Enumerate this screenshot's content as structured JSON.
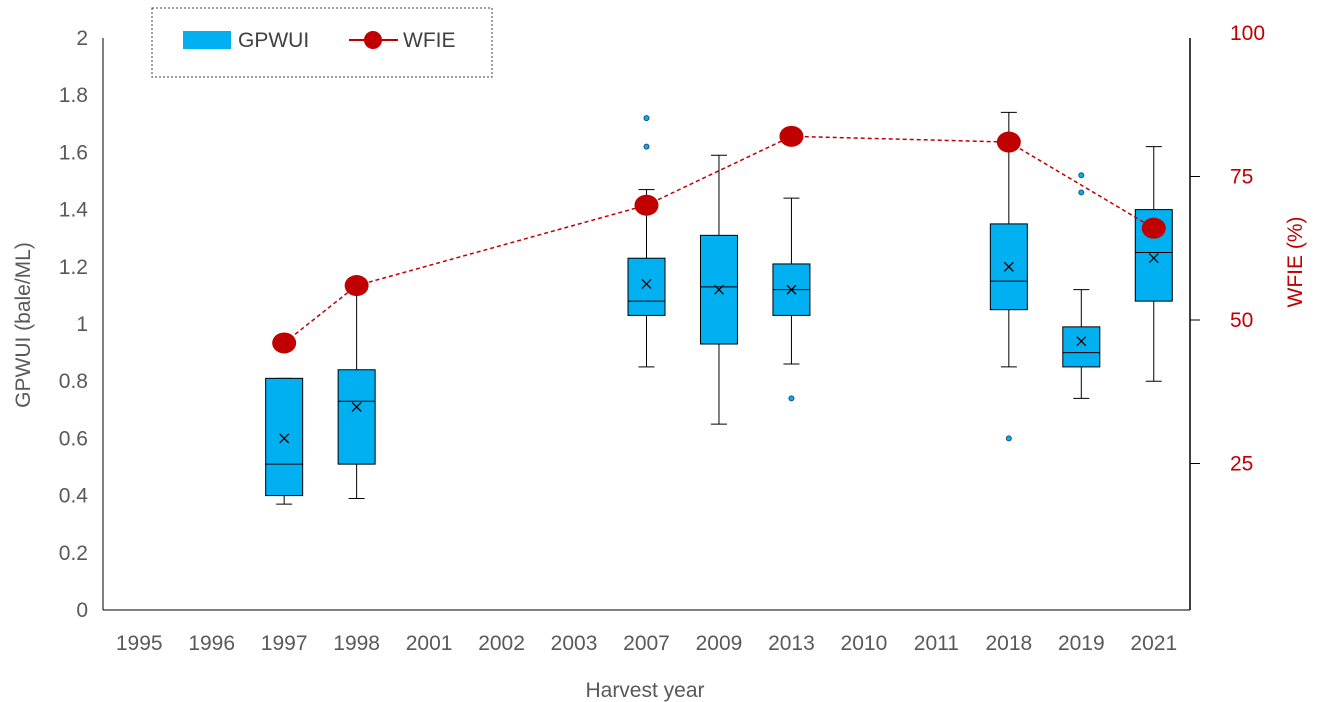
{
  "chart_data": {
    "type": "box+line",
    "xlabel": "Harvest year",
    "ylabel": "GPWUI (bale/ML)",
    "ylabel_right": "WFIE (%)",
    "categories": [
      "1995",
      "1996",
      "1997",
      "1998",
      "2001",
      "2002",
      "2003",
      "2007",
      "2009",
      "2013",
      "2010",
      "2011",
      "2018",
      "2019",
      "2021"
    ],
    "ylim": [
      0,
      2
    ],
    "yticks": [
      "0",
      "0.2",
      "0.4",
      "0.6",
      "0.8",
      "1",
      "1.2",
      "1.4",
      "1.6",
      "1.8",
      "2"
    ],
    "ylim_right": [
      0,
      100
    ],
    "yticks_right": [
      "25",
      "50",
      "75",
      "100"
    ],
    "legend": {
      "position": "top-left",
      "entries": [
        "GPWUI",
        "WFIE"
      ]
    },
    "colors": {
      "box": "#00B0F0",
      "line": "#C00000",
      "box_border": "#000000"
    },
    "series": [
      {
        "name": "GPWUI",
        "kind": "box",
        "boxes": [
          {
            "category": "1997",
            "min": 0.37,
            "q1": 0.4,
            "median": 0.51,
            "q3": 0.81,
            "max": 0.81,
            "mean": 0.6,
            "outliers": []
          },
          {
            "category": "1998",
            "min": 0.39,
            "q1": 0.51,
            "median": 0.73,
            "q3": 0.84,
            "max": 1.11,
            "mean": 0.71,
            "outliers": []
          },
          {
            "category": "2007",
            "min": 0.85,
            "q1": 1.03,
            "median": 1.08,
            "q3": 1.23,
            "max": 1.47,
            "mean": 1.14,
            "outliers": [
              1.62,
              1.72
            ]
          },
          {
            "category": "2009",
            "min": 0.65,
            "q1": 0.93,
            "median": 1.13,
            "q3": 1.31,
            "max": 1.59,
            "mean": 1.12,
            "outliers": []
          },
          {
            "category": "2013",
            "min": 0.86,
            "q1": 1.03,
            "median": 1.12,
            "q3": 1.21,
            "max": 1.44,
            "mean": 1.12,
            "outliers": [
              0.74
            ]
          },
          {
            "category": "2018",
            "min": 0.85,
            "q1": 1.05,
            "median": 1.15,
            "q3": 1.35,
            "max": 1.74,
            "mean": 1.2,
            "outliers": [
              0.6
            ]
          },
          {
            "category": "2019",
            "min": 0.74,
            "q1": 0.85,
            "median": 0.9,
            "q3": 0.99,
            "max": 1.12,
            "mean": 0.94,
            "outliers": [
              1.46,
              1.52
            ]
          },
          {
            "category": "2021",
            "min": 0.8,
            "q1": 1.08,
            "median": 1.25,
            "q3": 1.4,
            "max": 1.62,
            "mean": 1.23,
            "outliers": []
          }
        ]
      },
      {
        "name": "WFIE",
        "kind": "line",
        "axis": "right",
        "points": [
          {
            "category": "1997",
            "value": 46
          },
          {
            "category": "1998",
            "value": 56
          },
          {
            "category": "2007",
            "value": 70
          },
          {
            "category": "2013",
            "value": 82
          },
          {
            "category": "2018",
            "value": 81
          },
          {
            "category": "2021",
            "value": 66
          }
        ]
      }
    ]
  }
}
